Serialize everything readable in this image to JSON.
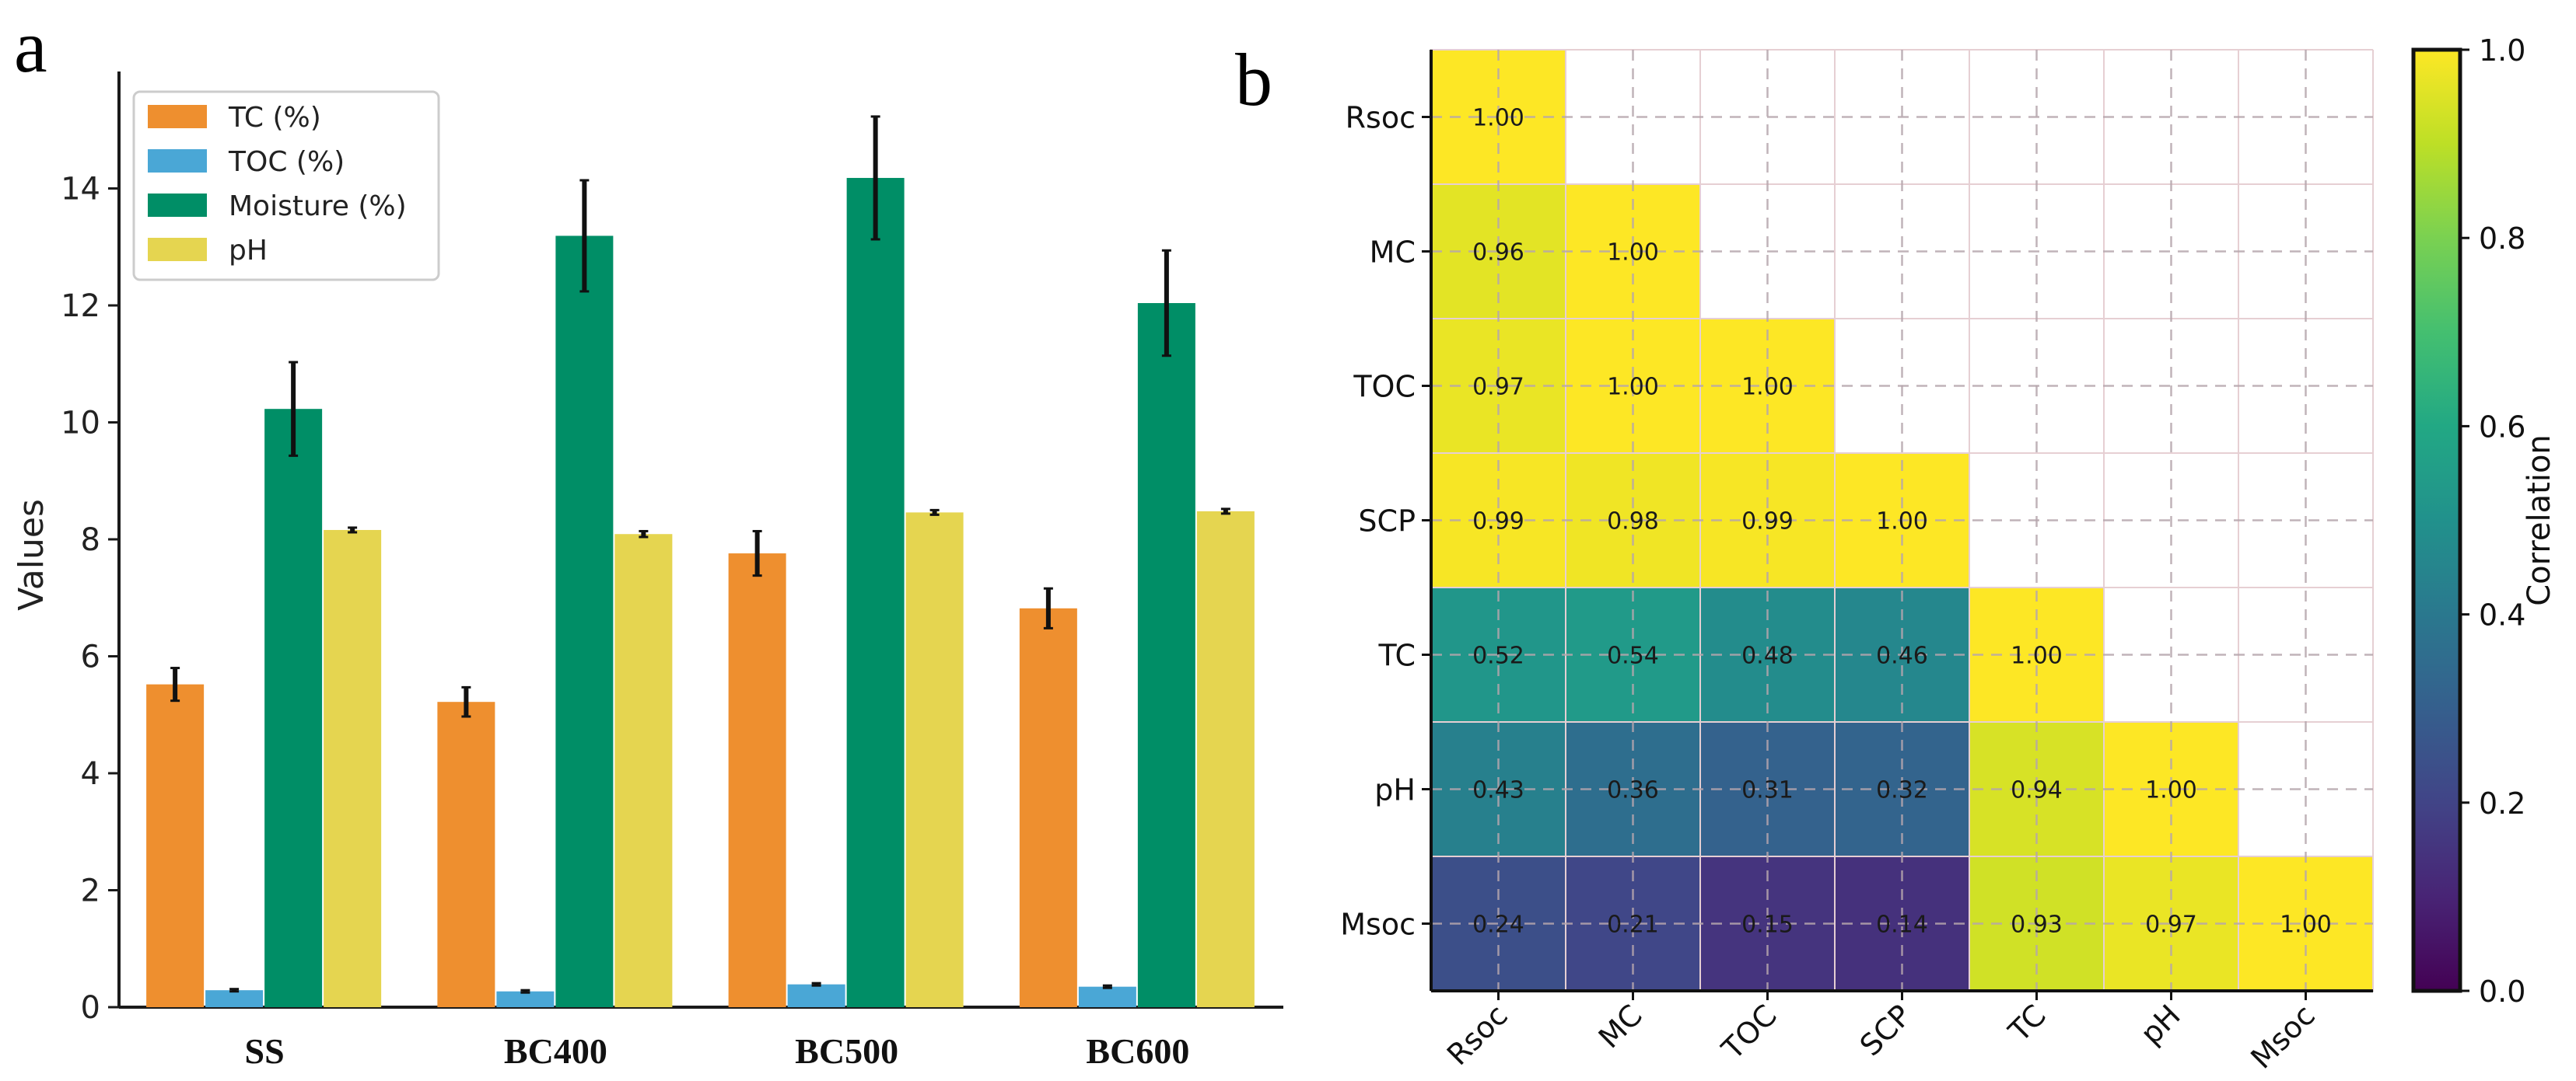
{
  "panels": {
    "a_label": "a",
    "b_label": "b"
  },
  "chart_data": [
    {
      "type": "bar",
      "categories": [
        "SS",
        "BC400",
        "BC500",
        "BC600"
      ],
      "ylabel": "Values",
      "xlabel": "",
      "ylim": [
        0,
        16
      ],
      "yticks": [
        0,
        2,
        4,
        6,
        8,
        10,
        12,
        14
      ],
      "legend_position": "top-left",
      "series": [
        {
          "name": "TC (%)",
          "color": "#ee8f2f",
          "values": [
            5.52,
            5.22,
            7.76,
            6.82
          ],
          "errors": [
            0.28,
            0.25,
            0.38,
            0.34
          ]
        },
        {
          "name": "TOC (%)",
          "color": "#4aa7d6",
          "values": [
            0.29,
            0.27,
            0.39,
            0.35
          ],
          "errors": [
            0.02,
            0.02,
            0.02,
            0.02
          ]
        },
        {
          "name": "Moisture (%)",
          "color": "#008e66",
          "values": [
            10.23,
            13.19,
            14.18,
            12.04
          ],
          "errors": [
            0.8,
            0.95,
            1.05,
            0.9
          ]
        },
        {
          "name": "pH",
          "color": "#e5d550",
          "values": [
            8.16,
            8.09,
            8.46,
            8.48
          ],
          "errors": [
            0.04,
            0.05,
            0.04,
            0.04
          ]
        }
      ]
    },
    {
      "type": "heatmap",
      "variables": [
        "Rsoc",
        "MC",
        "TOC",
        "SCP",
        "TC",
        "pH",
        "Msoc"
      ],
      "lower_triangle": [
        [
          1.0
        ],
        [
          0.96,
          1.0
        ],
        [
          0.97,
          1.0,
          1.0
        ],
        [
          0.99,
          0.98,
          0.99,
          1.0
        ],
        [
          0.52,
          0.54,
          0.48,
          0.46,
          1.0
        ],
        [
          0.43,
          0.36,
          0.31,
          0.32,
          0.94,
          1.0
        ],
        [
          0.24,
          0.21,
          0.15,
          0.14,
          0.93,
          0.97,
          1.0
        ]
      ],
      "value_labels": [
        [
          "1.00"
        ],
        [
          "0.96",
          "1.00"
        ],
        [
          "0.97",
          "1.00",
          "1.00"
        ],
        [
          "0.99",
          "0.98",
          "0.99",
          "1.00"
        ],
        [
          "0.52",
          "0.54",
          "0.48",
          "0.46",
          "1.00"
        ],
        [
          "0.43",
          "0.36",
          "0.31",
          "0.32",
          "0.94",
          "1.00"
        ],
        [
          "0.24",
          "0.21",
          "0.15",
          "0.14",
          "0.93",
          "0.97",
          "1.00"
        ]
      ],
      "colormap": "viridis",
      "colorbar": {
        "label": "Correlation",
        "range": [
          0.0,
          1.0
        ],
        "ticks": [
          "0.0",
          "0.2",
          "0.4",
          "0.6",
          "0.8",
          "1.0"
        ]
      },
      "grid": true
    }
  ]
}
